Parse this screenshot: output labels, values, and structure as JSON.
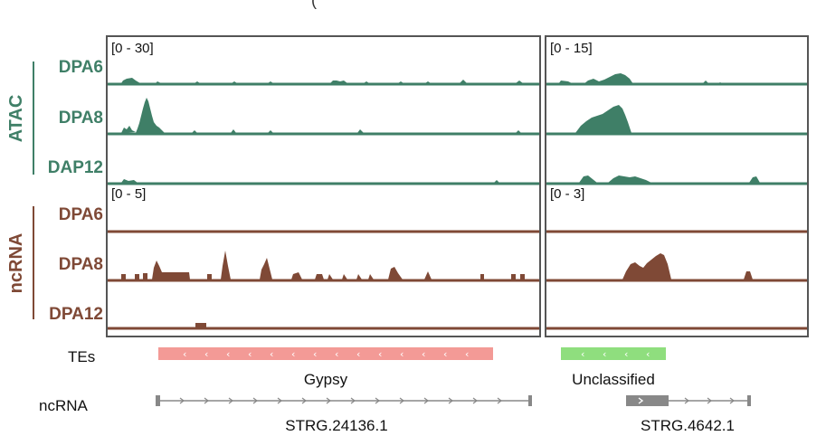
{
  "figure": {
    "header_fragment": "(",
    "scales": {
      "atac_left": "[0 - 30]",
      "atac_right": "[0 - 15]",
      "ncrna_left": "[0 - 5]",
      "ncrna_right": "[0 - 3]"
    },
    "groups": [
      {
        "label": "ATAC",
        "color": "#3f7f67",
        "tracks": [
          "DPA6",
          "DPA8",
          "DAP12"
        ]
      },
      {
        "label": "ncRNA",
        "color": "#7f4936",
        "tracks": [
          "DPA6",
          "DPA8",
          "DPA12"
        ]
      }
    ],
    "annotations": {
      "tes_label": "TEs",
      "ncrna_label": "ncRNA",
      "te_left_name": "Gypsy",
      "te_right_name": "Unclassified",
      "te_left_color": "#f39a96",
      "te_right_color": "#8fde7e",
      "gene_left_name": "STRG.24136.1",
      "gene_right_name": "STRG.4642.1"
    },
    "colors": {
      "atac": "#3f7f67",
      "ncrna": "#7f4936",
      "frame": "#555555",
      "gene": "#888888"
    }
  }
}
